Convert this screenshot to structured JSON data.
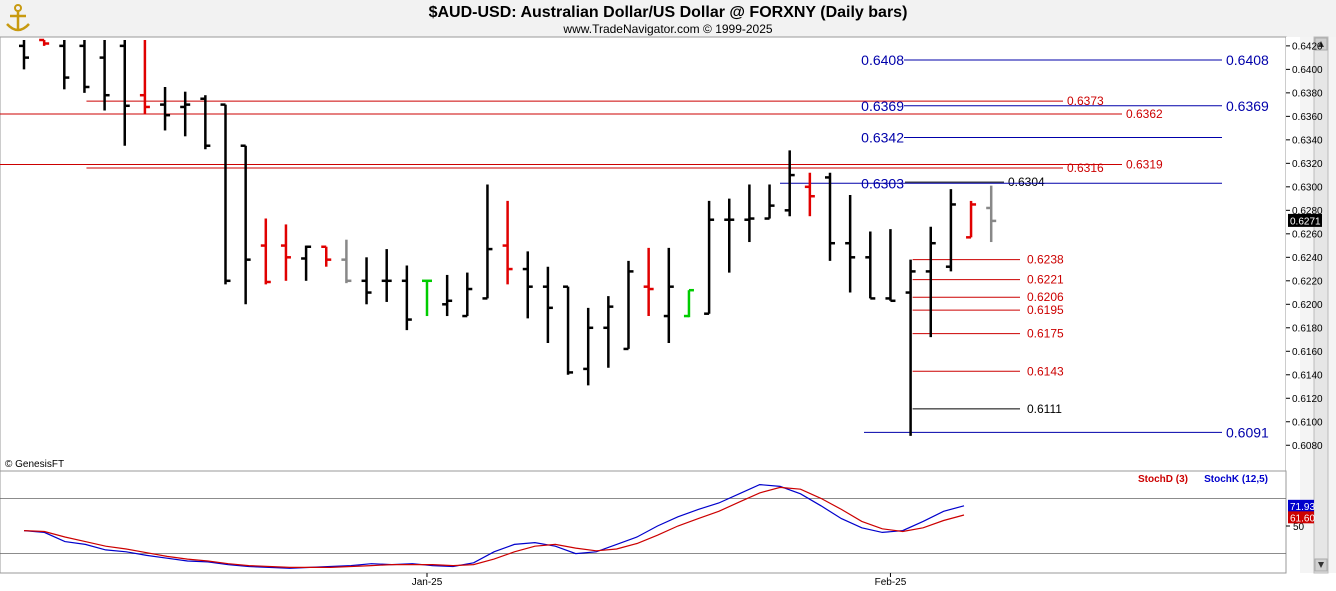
{
  "header": {
    "title": "$AUD-USD:  Australian Dollar/US Dollar @ FORXNY  (Daily bars)",
    "subtitle": "www.TradeNavigator.com © 1999-2025"
  },
  "watermark": "© GenesisFT",
  "logo_icon": "anchor-logo-icon",
  "colors": {
    "up_bar": "#000000",
    "down_bar": "#e00000",
    "highlight_bar": "#00cc00",
    "neutral_bar": "#888888",
    "resistance": "#cc0000",
    "support_blue": "#0000aa",
    "stoch_d": "#cc0000",
    "stoch_k": "#0000cc"
  },
  "chart_data": [
    {
      "type": "ohlc",
      "title": "$AUD-USD:  Australian Dollar/US Dollar @ FORXNY  (Daily bars)",
      "ylim": [
        0.607,
        0.6425
      ],
      "yticks": [
        "0.6420",
        "0.6400",
        "0.6380",
        "0.6360",
        "0.6340",
        "0.6320",
        "0.6300",
        "0.6280",
        "0.6260",
        "0.6240",
        "0.6220",
        "0.6200",
        "0.6180",
        "0.6160",
        "0.6140",
        "0.6120",
        "0.6100",
        "0.6080"
      ],
      "xticks": [
        {
          "label": "Jan-25",
          "bar_index": 20
        },
        {
          "label": "Feb-25",
          "bar_index": 43
        }
      ],
      "last_price": "0.6271",
      "bars": [
        {
          "o": 0.642,
          "h": 0.6425,
          "l": 0.64,
          "c": 0.641,
          "col": "up"
        },
        {
          "o": 0.6425,
          "h": 0.6425,
          "l": 0.642,
          "c": 0.6422,
          "col": "down"
        },
        {
          "o": 0.642,
          "h": 0.6425,
          "l": 0.6383,
          "c": 0.6393,
          "col": "up"
        },
        {
          "o": 0.642,
          "h": 0.6425,
          "l": 0.638,
          "c": 0.6385,
          "col": "up"
        },
        {
          "o": 0.641,
          "h": 0.6425,
          "l": 0.6365,
          "c": 0.6378,
          "col": "up"
        },
        {
          "o": 0.642,
          "h": 0.6425,
          "l": 0.6335,
          "c": 0.6369,
          "col": "up"
        },
        {
          "o": 0.6378,
          "h": 0.6425,
          "l": 0.6362,
          "c": 0.6368,
          "col": "down"
        },
        {
          "o": 0.637,
          "h": 0.6385,
          "l": 0.6348,
          "c": 0.6361,
          "col": "up"
        },
        {
          "o": 0.6368,
          "h": 0.6381,
          "l": 0.6343,
          "c": 0.637,
          "col": "up"
        },
        {
          "o": 0.6375,
          "h": 0.6378,
          "l": 0.6332,
          "c": 0.6335,
          "col": "up"
        },
        {
          "o": 0.637,
          "h": 0.637,
          "l": 0.6217,
          "c": 0.622,
          "col": "up"
        },
        {
          "o": 0.6335,
          "h": 0.6335,
          "l": 0.62,
          "c": 0.6238,
          "col": "up"
        },
        {
          "o": 0.625,
          "h": 0.6273,
          "l": 0.6217,
          "c": 0.6219,
          "col": "down"
        },
        {
          "o": 0.625,
          "h": 0.6268,
          "l": 0.622,
          "c": 0.624,
          "col": "down"
        },
        {
          "o": 0.6239,
          "h": 0.625,
          "l": 0.622,
          "c": 0.6249,
          "col": "up"
        },
        {
          "o": 0.6249,
          "h": 0.6249,
          "l": 0.6232,
          "c": 0.6238,
          "col": "down"
        },
        {
          "o": 0.6238,
          "h": 0.6255,
          "l": 0.6218,
          "c": 0.622,
          "col": "neutral"
        },
        {
          "o": 0.622,
          "h": 0.624,
          "l": 0.62,
          "c": 0.621,
          "col": "up"
        },
        {
          "o": 0.622,
          "h": 0.6247,
          "l": 0.6202,
          "c": 0.622,
          "col": "up"
        },
        {
          "o": 0.622,
          "h": 0.6233,
          "l": 0.6178,
          "c": 0.6187,
          "col": "up"
        },
        {
          "o": 0.622,
          "h": 0.622,
          "l": 0.619,
          "c": 0.622,
          "col": "highlight"
        },
        {
          "o": 0.62,
          "h": 0.6225,
          "l": 0.619,
          "c": 0.6203,
          "col": "up"
        },
        {
          "o": 0.619,
          "h": 0.6227,
          "l": 0.619,
          "c": 0.6213,
          "col": "up"
        },
        {
          "o": 0.6205,
          "h": 0.6302,
          "l": 0.6205,
          "c": 0.6247,
          "col": "up"
        },
        {
          "o": 0.625,
          "h": 0.6288,
          "l": 0.6217,
          "c": 0.623,
          "col": "down"
        },
        {
          "o": 0.623,
          "h": 0.6245,
          "l": 0.6188,
          "c": 0.6215,
          "col": "up"
        },
        {
          "o": 0.6215,
          "h": 0.6232,
          "l": 0.6167,
          "c": 0.6197,
          "col": "up"
        },
        {
          "o": 0.6215,
          "h": 0.6215,
          "l": 0.614,
          "c": 0.6142,
          "col": "up"
        },
        {
          "o": 0.6145,
          "h": 0.6197,
          "l": 0.6131,
          "c": 0.618,
          "col": "up"
        },
        {
          "o": 0.618,
          "h": 0.6207,
          "l": 0.6146,
          "c": 0.6198,
          "col": "up"
        },
        {
          "o": 0.6162,
          "h": 0.6237,
          "l": 0.6162,
          "c": 0.6228,
          "col": "up"
        },
        {
          "o": 0.6215,
          "h": 0.6248,
          "l": 0.619,
          "c": 0.6213,
          "col": "down"
        },
        {
          "o": 0.619,
          "h": 0.6248,
          "l": 0.6167,
          "c": 0.6215,
          "col": "up"
        },
        {
          "o": 0.619,
          "h": 0.6212,
          "l": 0.6189,
          "c": 0.6212,
          "col": "highlight"
        },
        {
          "o": 0.6192,
          "h": 0.6288,
          "l": 0.6192,
          "c": 0.6272,
          "col": "up"
        },
        {
          "o": 0.6272,
          "h": 0.629,
          "l": 0.6227,
          "c": 0.6272,
          "col": "up"
        },
        {
          "o": 0.6272,
          "h": 0.6302,
          "l": 0.6253,
          "c": 0.6273,
          "col": "up"
        },
        {
          "o": 0.6273,
          "h": 0.6302,
          "l": 0.6273,
          "c": 0.6284,
          "col": "up"
        },
        {
          "o": 0.628,
          "h": 0.6331,
          "l": 0.6275,
          "c": 0.631,
          "col": "up"
        },
        {
          "o": 0.63,
          "h": 0.6312,
          "l": 0.6275,
          "c": 0.6292,
          "col": "down"
        },
        {
          "o": 0.6308,
          "h": 0.6312,
          "l": 0.6237,
          "c": 0.6252,
          "col": "up"
        },
        {
          "o": 0.6252,
          "h": 0.6293,
          "l": 0.621,
          "c": 0.624,
          "col": "up"
        },
        {
          "o": 0.624,
          "h": 0.6262,
          "l": 0.6205,
          "c": 0.6205,
          "col": "up"
        },
        {
          "o": 0.6205,
          "h": 0.6264,
          "l": 0.6203,
          "c": 0.6203,
          "col": "up"
        },
        {
          "o": 0.621,
          "h": 0.6238,
          "l": 0.6088,
          "c": 0.6228,
          "col": "up"
        },
        {
          "o": 0.6228,
          "h": 0.6266,
          "l": 0.6172,
          "c": 0.6252,
          "col": "up"
        },
        {
          "o": 0.6232,
          "h": 0.6298,
          "l": 0.6228,
          "c": 0.6285,
          "col": "up"
        },
        {
          "o": 0.6257,
          "h": 0.6288,
          "l": 0.6257,
          "c": 0.6285,
          "col": "down"
        },
        {
          "o": 0.6282,
          "h": 0.6301,
          "l": 0.6253,
          "c": 0.6271,
          "col": "neutral"
        }
      ],
      "levels": [
        {
          "value": 0.6408,
          "label": "0.6408",
          "color": "blue",
          "style": "big",
          "label_pos": "both",
          "from_bar": 41
        },
        {
          "value": 0.6373,
          "label": "0.6373",
          "color": "red",
          "style": "small",
          "label_pos": "right1",
          "from_bar": 3
        },
        {
          "value": 0.6369,
          "label": "0.6369",
          "color": "blue",
          "style": "big",
          "label_pos": "both",
          "from_bar": 41
        },
        {
          "value": 0.6362,
          "label": "0.6362",
          "color": "red",
          "style": "small",
          "label_pos": "right2",
          "from_bar": -1
        },
        {
          "value": 0.6342,
          "label": "0.6342",
          "color": "blue",
          "style": "big",
          "label_pos": "left",
          "from_bar": 41
        },
        {
          "value": 0.6319,
          "label": "0.6319",
          "color": "red",
          "style": "small",
          "label_pos": "right2",
          "from_bar": -1
        },
        {
          "value": 0.6316,
          "label": "0.6316",
          "color": "red",
          "style": "small",
          "label_pos": "right1",
          "from_bar": 3
        },
        {
          "value": 0.6304,
          "label": "0.6304",
          "color": "black",
          "style": "small",
          "label_pos": "right0",
          "from_bar": 38
        },
        {
          "value": 0.6303,
          "label": "0.6303",
          "color": "blue",
          "style": "big",
          "label_pos": "left",
          "from_bar": 38
        },
        {
          "value": 0.6238,
          "label": "0.6238",
          "color": "red",
          "style": "small",
          "label_pos": "right0",
          "from_bar": 44
        },
        {
          "value": 0.6221,
          "label": "0.6221",
          "color": "red",
          "style": "small",
          "label_pos": "right0",
          "from_bar": 44
        },
        {
          "value": 0.6206,
          "label": "0.6206",
          "color": "red",
          "style": "small",
          "label_pos": "right0",
          "from_bar": 44
        },
        {
          "value": 0.6195,
          "label": "0.6195",
          "color": "red",
          "style": "small",
          "label_pos": "right0",
          "from_bar": 44
        },
        {
          "value": 0.6175,
          "label": "0.6175",
          "color": "red",
          "style": "small",
          "label_pos": "right0",
          "from_bar": 44
        },
        {
          "value": 0.6143,
          "label": "0.6143",
          "color": "red",
          "style": "small",
          "label_pos": "right0",
          "from_bar": 44
        },
        {
          "value": 0.6111,
          "label": "0.6111",
          "color": "black",
          "style": "small",
          "label_pos": "right0",
          "from_bar": 44
        },
        {
          "value": 0.6091,
          "label": "0.6091",
          "color": "blue",
          "style": "big",
          "label_pos": "right2",
          "from_bar": 43
        }
      ]
    },
    {
      "type": "line",
      "legend": [
        "StochD (3)",
        "StochK (12,5)"
      ],
      "ylim": [
        0,
        100
      ],
      "yticks": [
        "50"
      ],
      "ref_lines": [
        80,
        20
      ],
      "last_values": {
        "k": "71.93",
        "d": "61.60"
      },
      "series": [
        {
          "name": "StochK (12,5)",
          "values": [
            45,
            43,
            33,
            30,
            24,
            22,
            18,
            15,
            12,
            11,
            8,
            6,
            5,
            4,
            5,
            6,
            7,
            9,
            8,
            9,
            7,
            6,
            10,
            22,
            30,
            32,
            28,
            20,
            22,
            30,
            38,
            50,
            60,
            68,
            75,
            85,
            95,
            93,
            85,
            72,
            58,
            48,
            43,
            45,
            55,
            66,
            72
          ]
        },
        {
          "name": "StochD (3)",
          "values": [
            45,
            44,
            38,
            33,
            28,
            25,
            21,
            17,
            14,
            12,
            9,
            7,
            6,
            5,
            5,
            5,
            6,
            7,
            8,
            8,
            8,
            7,
            8,
            14,
            22,
            28,
            30,
            26,
            23,
            25,
            31,
            40,
            50,
            58,
            66,
            76,
            86,
            92,
            90,
            80,
            68,
            55,
            47,
            44,
            48,
            56,
            62
          ]
        }
      ]
    }
  ]
}
